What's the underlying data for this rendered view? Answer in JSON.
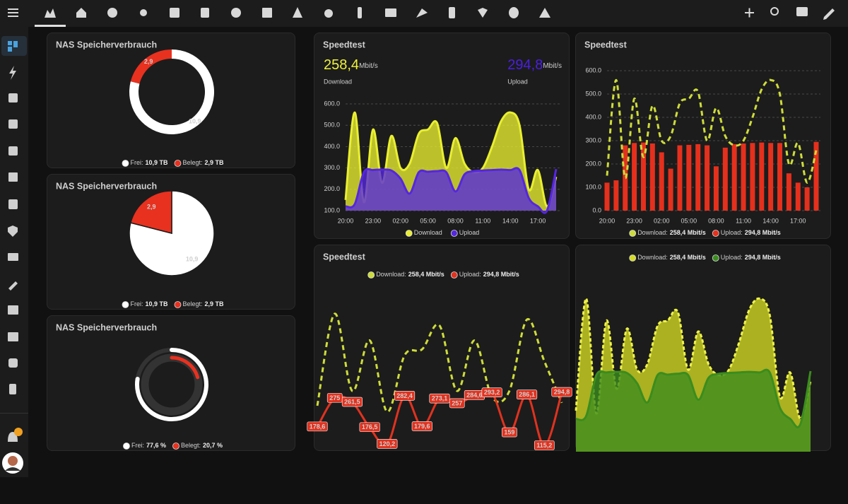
{
  "chart_data": [
    {
      "type": "donut",
      "title": "NAS Speicherverbrauch",
      "categories": [
        "Frei:",
        "Belegt:"
      ],
      "values": [
        10.9,
        2.9
      ],
      "value_labels": [
        "10,9",
        "2,9"
      ],
      "legend_values": [
        "10,9 TB",
        "2,9 TB"
      ],
      "colors": [
        "#ffffff",
        "#e8311f"
      ]
    },
    {
      "type": "pie",
      "title": "NAS Speicherverbrauch",
      "categories": [
        "Frei:",
        "Belegt:"
      ],
      "values": [
        10.9,
        2.9
      ],
      "value_labels": [
        "10,9",
        "2,9"
      ],
      "legend_values": [
        "10,9 TB",
        "2,9 TB"
      ],
      "colors": [
        "#ffffff",
        "#e8311f"
      ]
    },
    {
      "type": "radial",
      "title": "NAS Speicherverbrauch",
      "categories": [
        "Frei:",
        "Belegt:"
      ],
      "values": [
        77.6,
        20.7
      ],
      "legend_values": [
        "77,6 %",
        "20,7 %"
      ],
      "colors": [
        "#ffffff",
        "#e8311f"
      ],
      "ylim": [
        0,
        100
      ]
    },
    {
      "type": "area",
      "title": "Speedtest",
      "readings": [
        {
          "value": "258,4",
          "unit": "Mbit/s",
          "label": "Download",
          "color": "#f0f23a"
        },
        {
          "value": "294,8",
          "unit": "Mbit/s",
          "label": "Upload",
          "color": "#4a1fe0"
        }
      ],
      "x": [
        "20:00",
        "21:00",
        "22:00",
        "23:00",
        "00:00",
        "01:00",
        "02:00",
        "03:00",
        "04:00",
        "05:00",
        "06:00",
        "07:00",
        "08:00",
        "09:00",
        "10:00",
        "11:00",
        "12:00",
        "13:00",
        "14:00",
        "15:00",
        "16:00",
        "17:00",
        "18:00",
        "19:00"
      ],
      "xticks": [
        "20:00",
        "23:00",
        "02:00",
        "05:00",
        "08:00",
        "11:00",
        "14:00",
        "17:00"
      ],
      "ylim": [
        100,
        600
      ],
      "yticks": [
        {
          "value": 100,
          "label": "100.0"
        },
        {
          "value": 200,
          "label": "200.0"
        },
        {
          "value": 300,
          "label": "300.0"
        },
        {
          "value": 400,
          "label": "400.0"
        },
        {
          "value": 500,
          "label": "500.0"
        },
        {
          "value": 600,
          "label": "600.0"
        }
      ],
      "grid": true,
      "series": [
        {
          "name": "Download",
          "color": "#e9ef2f",
          "style": "solid",
          "values": [
            150,
            560,
            140,
            480,
            230,
            450,
            300,
            320,
            460,
            480,
            510,
            300,
            440,
            320,
            280,
            300,
            400,
            520,
            560,
            500,
            200,
            290,
            120,
            258.4
          ]
        },
        {
          "name": "Upload",
          "color": "#5526e0",
          "style": "solid",
          "values": [
            120,
            130,
            280,
            290,
            292,
            288,
            250,
            180,
            280,
            282,
            285,
            280,
            190,
            270,
            285,
            288,
            290,
            292,
            290,
            290,
            160,
            120,
            100,
            294.8
          ]
        }
      ]
    },
    {
      "type": "combo",
      "title": "Speedtest",
      "x": [
        "20:00",
        "21:00",
        "22:00",
        "23:00",
        "00:00",
        "01:00",
        "02:00",
        "03:00",
        "04:00",
        "05:00",
        "06:00",
        "07:00",
        "08:00",
        "09:00",
        "10:00",
        "11:00",
        "12:00",
        "13:00",
        "14:00",
        "15:00",
        "16:00",
        "17:00",
        "18:00",
        "19:00"
      ],
      "xticks": [
        "20:00",
        "23:00",
        "02:00",
        "05:00",
        "08:00",
        "11:00",
        "14:00",
        "17:00"
      ],
      "ylim": [
        0,
        600
      ],
      "yticks": [
        {
          "value": 0,
          "label": "0.0"
        },
        {
          "value": 100,
          "label": "100.0"
        },
        {
          "value": 200,
          "label": "200.0"
        },
        {
          "value": 300,
          "label": "300.0"
        },
        {
          "value": 400,
          "label": "400.0"
        },
        {
          "value": 500,
          "label": "500.0"
        },
        {
          "value": 600,
          "label": "600.0"
        }
      ],
      "grid": true,
      "series": [
        {
          "name": "Download:",
          "legend_value": "258,4 Mbit/s",
          "color": "#cddc39",
          "style": "dashed",
          "values": [
            150,
            560,
            140,
            480,
            230,
            450,
            300,
            320,
            460,
            480,
            510,
            300,
            440,
            320,
            280,
            300,
            400,
            520,
            560,
            500,
            200,
            290,
            120,
            258.4
          ]
        },
        {
          "name": "Upload:",
          "legend_value": "294,8 Mbit/s",
          "color": "#e5301d",
          "style": "bar",
          "values": [
            120,
            130,
            280,
            290,
            292,
            288,
            250,
            180,
            280,
            282,
            285,
            280,
            190,
            270,
            285,
            288,
            290,
            292,
            290,
            290,
            160,
            120,
            100,
            294.8
          ]
        }
      ]
    },
    {
      "type": "line",
      "title": "Speedtest",
      "ylim": [
        100,
        600
      ],
      "series": [
        {
          "name": "Download:",
          "legend_value": "258,4 Mbit/s",
          "color": "#cddc39",
          "style": "dashed",
          "values": [
            250,
            560,
            300,
            470,
            230,
            420,
            440,
            520,
            300,
            470,
            280,
            300,
            540,
            400,
            260
          ]
        },
        {
          "name": "Upload:",
          "legend_value": "294,8 Mbit/s",
          "color": "#e0321f",
          "style": "solid",
          "values": [
            178.6,
            275,
            261.5,
            176.5,
            120.2,
            282.4,
            179.6,
            273.1,
            257,
            284.6,
            293.2,
            159,
            286.1,
            115.2,
            294.8
          ],
          "value_labels": [
            "178,6",
            "275",
            "261,5",
            "176,5",
            "120,2",
            "282,4",
            "179,6",
            "273,1",
            "257",
            "284,6",
            "293,2",
            "159",
            "286,1",
            "115,2",
            "294,8"
          ]
        }
      ]
    },
    {
      "type": "area",
      "ylim": [
        0,
        600
      ],
      "x": [
        "20:00",
        "21:00",
        "22:00",
        "23:00",
        "00:00",
        "01:00",
        "02:00",
        "03:00",
        "04:00",
        "05:00",
        "06:00",
        "07:00",
        "08:00",
        "09:00",
        "10:00",
        "11:00",
        "12:00",
        "13:00",
        "14:00",
        "15:00",
        "16:00",
        "17:00",
        "18:00",
        "19:00"
      ],
      "series": [
        {
          "name": "Download:",
          "legend_value": "258,4 Mbit/s",
          "color": "#d4db22",
          "style": "dashed",
          "values": [
            150,
            560,
            140,
            480,
            230,
            450,
            300,
            320,
            460,
            480,
            510,
            300,
            440,
            320,
            280,
            300,
            400,
            520,
            560,
            500,
            200,
            290,
            120,
            258.4
          ]
        },
        {
          "name": "Upload:",
          "legend_value": "294,8 Mbit/s",
          "color": "#3b8c1e",
          "style": "solid",
          "values": [
            120,
            130,
            280,
            290,
            292,
            288,
            250,
            180,
            280,
            282,
            285,
            280,
            190,
            270,
            285,
            288,
            290,
            292,
            290,
            290,
            160,
            120,
            100,
            294.8
          ]
        }
      ]
    }
  ]
}
